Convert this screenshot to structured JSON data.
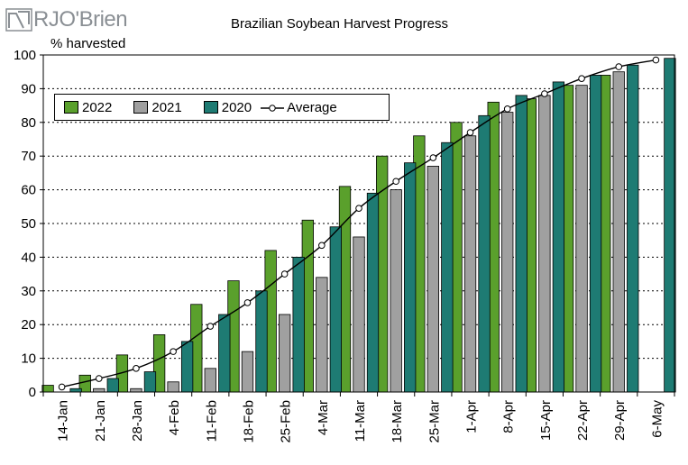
{
  "logo": {
    "text": "RJO'Brien"
  },
  "chart_data": {
    "type": "bar",
    "title": "Brazilian Soybean Harvest Progress",
    "ylabel": "% harvested",
    "ylim": [
      0,
      100
    ],
    "yticks": [
      0,
      10,
      20,
      30,
      40,
      50,
      60,
      70,
      80,
      90,
      100
    ],
    "grid": true,
    "legend_placement": "top-left",
    "categories": [
      "14-Jan",
      "21-Jan",
      "28-Jan",
      "4-Feb",
      "11-Feb",
      "18-Feb",
      "25-Feb",
      "4-Mar",
      "11-Mar",
      "18-Mar",
      "25-Mar",
      "1-Apr",
      "8-Apr",
      "15-Apr",
      "22-Apr",
      "29-Apr",
      "6-May"
    ],
    "series": [
      {
        "name": "2022",
        "color": "#5aa02c",
        "values": [
          2,
          5,
          11,
          17,
          26,
          33,
          42,
          51,
          61,
          70,
          76,
          80,
          86,
          87,
          91,
          94,
          null
        ]
      },
      {
        "name": "2021",
        "color": "#a0a0a0",
        "values": [
          0,
          1,
          1,
          3,
          7,
          12,
          23,
          34,
          46,
          60,
          67,
          76,
          83,
          88,
          91,
          95,
          null
        ]
      },
      {
        "name": "2020",
        "color": "#1e7b73",
        "values": [
          1,
          4,
          6,
          15,
          23,
          30,
          40,
          49,
          59,
          68,
          74,
          82,
          88,
          92,
          94,
          97,
          99
        ]
      },
      {
        "name": "Average",
        "type": "line",
        "color": "#000000",
        "values": [
          1.5,
          4,
          7,
          12,
          19.5,
          26.5,
          35,
          43.5,
          54.5,
          62.5,
          69.5,
          77,
          84,
          88.5,
          93,
          96.5,
          98.5
        ]
      }
    ]
  }
}
